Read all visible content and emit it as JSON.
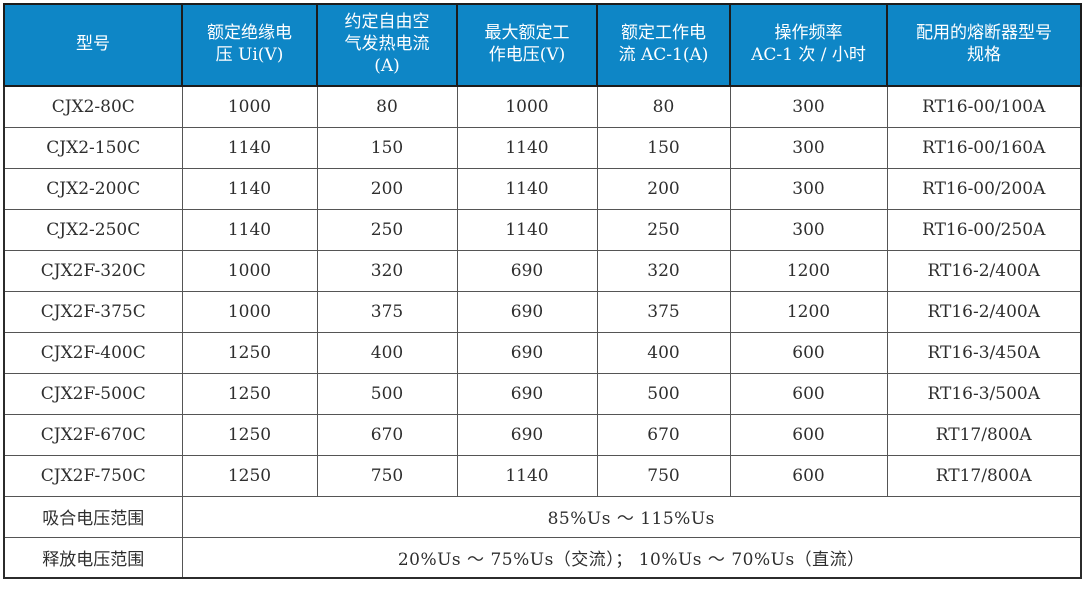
{
  "table": {
    "columns": [
      {
        "label": "型号"
      },
      {
        "label": "额定绝缘电\n压 Ui(V)"
      },
      {
        "label": "约定自由空\n气发热电流\n(A)"
      },
      {
        "label": "最大额定工\n作电压(V)"
      },
      {
        "label": "额定工作电\n流 AC-1(A)"
      },
      {
        "label": "操作频率\nAC-1 次 / 小时"
      },
      {
        "label": "配用的熔断器型号\n规格"
      }
    ],
    "rows": [
      [
        "CJX2-80C",
        "1000",
        "80",
        "1000",
        "80",
        "300",
        "RT16-00/100A"
      ],
      [
        "CJX2-150C",
        "1140",
        "150",
        "1140",
        "150",
        "300",
        "RT16-00/160A"
      ],
      [
        "CJX2-200C",
        "1140",
        "200",
        "1140",
        "200",
        "300",
        "RT16-00/200A"
      ],
      [
        "CJX2-250C",
        "1140",
        "250",
        "1140",
        "250",
        "300",
        "RT16-00/250A"
      ],
      [
        "CJX2F-320C",
        "1000",
        "320",
        "690",
        "320",
        "1200",
        "RT16-2/400A"
      ],
      [
        "CJX2F-375C",
        "1000",
        "375",
        "690",
        "375",
        "1200",
        "RT16-2/400A"
      ],
      [
        "CJX2F-400C",
        "1250",
        "400",
        "690",
        "400",
        "600",
        "RT16-3/450A"
      ],
      [
        "CJX2F-500C",
        "1250",
        "500",
        "690",
        "500",
        "600",
        "RT16-3/500A"
      ],
      [
        "CJX2F-670C",
        "1250",
        "670",
        "690",
        "670",
        "600",
        "RT17/800A"
      ],
      [
        "CJX2F-750C",
        "1250",
        "750",
        "1140",
        "750",
        "600",
        "RT17/800A"
      ]
    ],
    "footer_rows": [
      {
        "label": "吸合电压范围",
        "value": "85%Us ～ 115%Us"
      },
      {
        "label": "释放电压范围",
        "value": "20%Us ～ 75%Us（交流）； 10%Us ～ 70%Us（直流）"
      }
    ],
    "colors": {
      "header_bg": "#0E86C6",
      "header_text": "#FFFFFF",
      "body_text": "#2E2E2E",
      "grid_border": "#555555",
      "outer_border": "#2B2B2B"
    }
  }
}
